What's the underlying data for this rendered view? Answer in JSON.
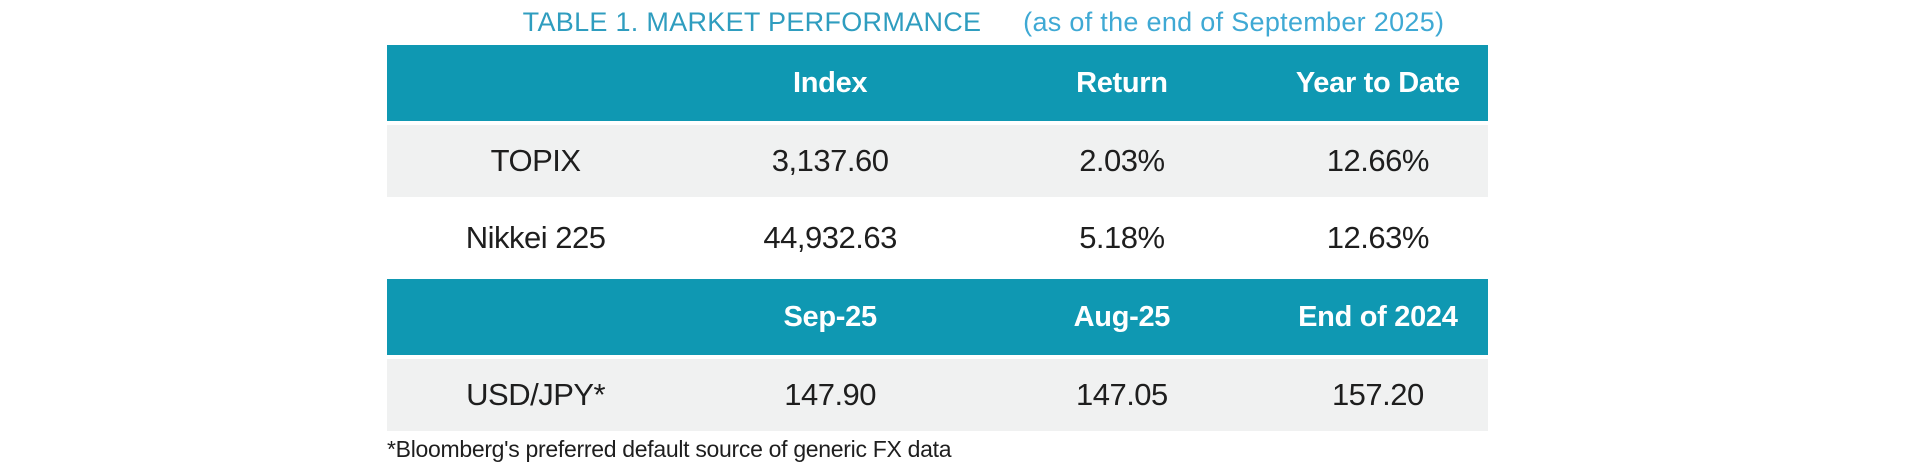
{
  "title": {
    "main": "TABLE 1. MARKET PERFORMANCE",
    "sub": "(as of the end of September 2025)"
  },
  "table1": {
    "headers": [
      "",
      "Index",
      "Return",
      "Year to Date"
    ],
    "rows": [
      {
        "label": "TOPIX",
        "values": [
          "3,137.60",
          "2.03%",
          "12.66%"
        ]
      },
      {
        "label": "Nikkei 225",
        "values": [
          "44,932.63",
          "5.18%",
          "12.63%"
        ]
      }
    ]
  },
  "table2": {
    "headers": [
      "",
      "Sep-25",
      "Aug-25",
      "End of 2024"
    ],
    "rows": [
      {
        "label": "USD/JPY*",
        "values": [
          "147.90",
          "147.05",
          "157.20"
        ]
      }
    ]
  },
  "footnote": "*Bloomberg's preferred default source of generic FX data",
  "colors": {
    "header_bg": "#0F98B2",
    "row_alt_bg": "#F0F1F1",
    "title_main": "#2F9DBF",
    "title_sub": "#3FA9D4",
    "header_text": "#FFFFFF",
    "body_text": "#1E1E1E"
  },
  "chart_data": {
    "type": "table",
    "title": "TABLE 1. MARKET PERFORMANCE (as of the end of September 2025)",
    "sections": [
      {
        "columns": [
          "",
          "Index",
          "Return",
          "Year to Date"
        ],
        "rows": [
          [
            "TOPIX",
            "3,137.60",
            "2.03%",
            "12.66%"
          ],
          [
            "Nikkei 225",
            "44,932.63",
            "5.18%",
            "12.63%"
          ]
        ]
      },
      {
        "columns": [
          "",
          "Sep-25",
          "Aug-25",
          "End of 2024"
        ],
        "rows": [
          [
            "USD/JPY*",
            "147.90",
            "147.05",
            "157.20"
          ]
        ]
      }
    ],
    "footnote": "*Bloomberg's preferred default source of generic FX data"
  }
}
